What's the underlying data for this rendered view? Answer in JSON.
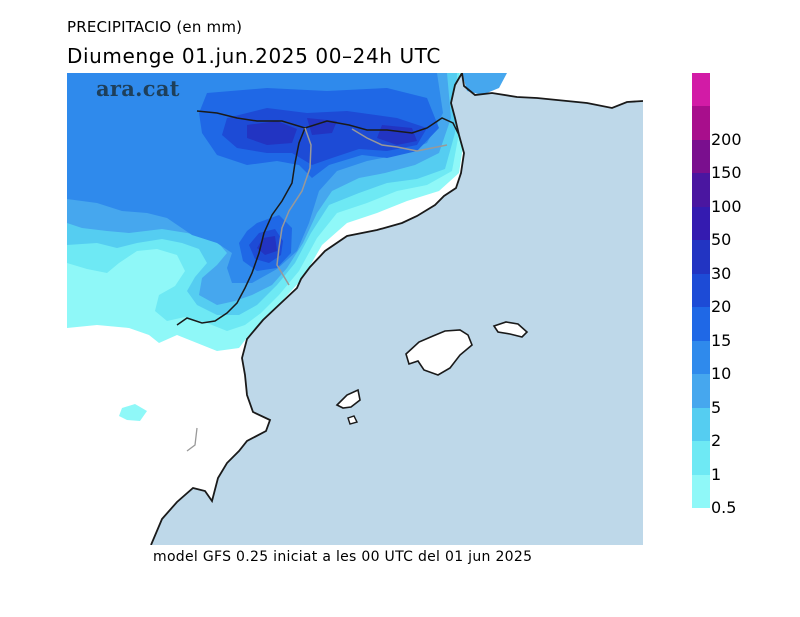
{
  "header": {
    "variable": "PRECIPITACIO (en mm)",
    "date_line": "Diumenge  01.jun.2025  00–24h  UTC"
  },
  "logo": {
    "text": "ara.cat"
  },
  "footer": {
    "text": "model GFS 0.25 iniciat a les 00 UTC del 01 jun 2025"
  },
  "colors": {
    "sea": "#bed8e9",
    "land": "#ffffff",
    "coast": "#1a1a1a",
    "border": "#999999"
  },
  "legend": {
    "levels": [
      {
        "label": "0.5",
        "color": "#8ff8f8"
      },
      {
        "label": "1",
        "color": "#6ee9f4"
      },
      {
        "label": "2",
        "color": "#55cdf1"
      },
      {
        "label": "5",
        "color": "#46a7ee"
      },
      {
        "label": "10",
        "color": "#2f8aec"
      },
      {
        "label": "15",
        "color": "#1f68e6"
      },
      {
        "label": "20",
        "color": "#1d4bd6"
      },
      {
        "label": "30",
        "color": "#2234c2"
      },
      {
        "label": "50",
        "color": "#341bb0"
      },
      {
        "label": "100",
        "color": "#4a16a0"
      },
      {
        "label": "150",
        "color": "#7a0f8e"
      },
      {
        "label": "200",
        "color": "#a80e8c"
      },
      {
        "label": "",
        "color": "#d21ba6"
      }
    ]
  }
}
